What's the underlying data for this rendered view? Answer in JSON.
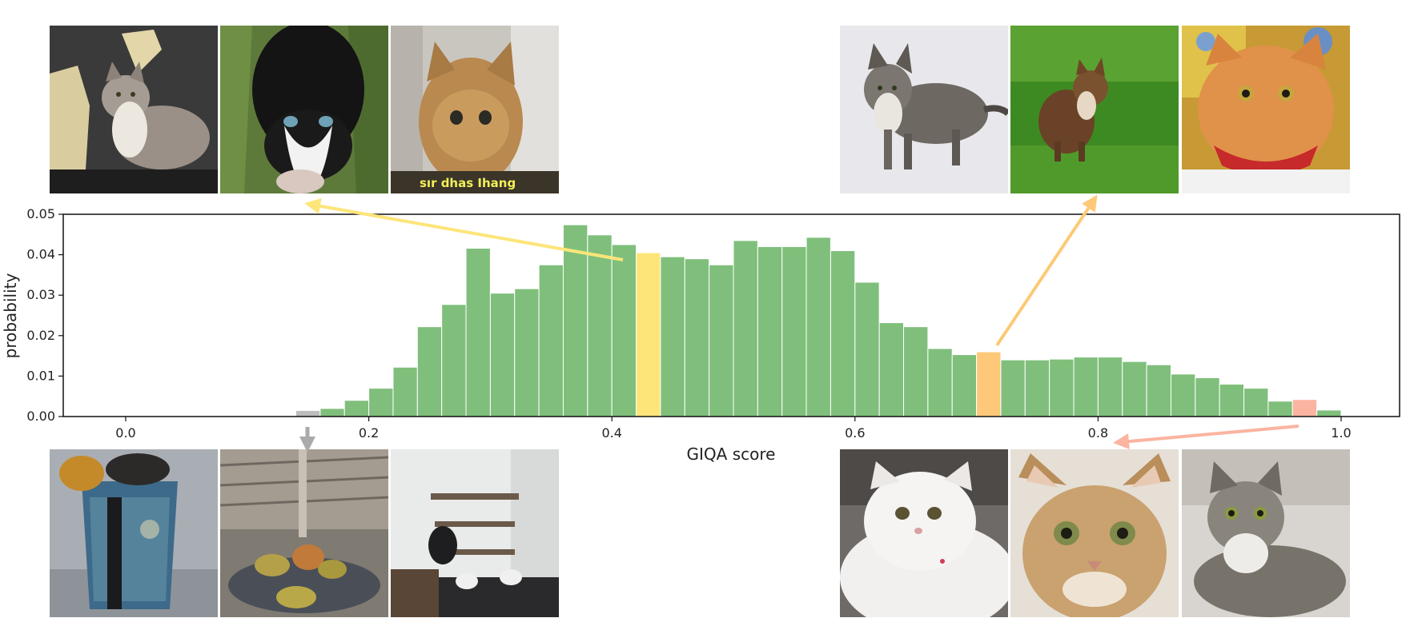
{
  "chart_data": {
    "type": "bar",
    "xlabel": "GIQA score",
    "ylabel": "probability",
    "xlim": [
      -0.1,
      1.05
    ],
    "ylim": [
      0,
      0.05
    ],
    "x_ticks": [
      "0.0",
      "0.2",
      "0.4",
      "0.6",
      "0.8",
      "1.0"
    ],
    "y_ticks": [
      "0.00",
      "0.01",
      "0.02",
      "0.03",
      "0.04",
      "0.05"
    ],
    "bin_width": 0.02,
    "bins": [
      {
        "x": 0.12,
        "value": 0.0002,
        "color": "#7fbf7b"
      },
      {
        "x": 0.14,
        "value": 0.0015,
        "color": "#bdbdbd"
      },
      {
        "x": 0.16,
        "value": 0.002,
        "color": "#7fbf7b"
      },
      {
        "x": 0.18,
        "value": 0.004,
        "color": "#7fbf7b"
      },
      {
        "x": 0.2,
        "value": 0.007,
        "color": "#7fbf7b"
      },
      {
        "x": 0.22,
        "value": 0.0122,
        "color": "#7fbf7b"
      },
      {
        "x": 0.24,
        "value": 0.0222,
        "color": "#7fbf7b"
      },
      {
        "x": 0.26,
        "value": 0.0277,
        "color": "#7fbf7b"
      },
      {
        "x": 0.28,
        "value": 0.0416,
        "color": "#7fbf7b"
      },
      {
        "x": 0.3,
        "value": 0.0305,
        "color": "#7fbf7b"
      },
      {
        "x": 0.32,
        "value": 0.0316,
        "color": "#7fbf7b"
      },
      {
        "x": 0.34,
        "value": 0.0375,
        "color": "#7fbf7b"
      },
      {
        "x": 0.36,
        "value": 0.0474,
        "color": "#7fbf7b"
      },
      {
        "x": 0.38,
        "value": 0.0449,
        "color": "#7fbf7b"
      },
      {
        "x": 0.4,
        "value": 0.0425,
        "color": "#7fbf7b"
      },
      {
        "x": 0.42,
        "value": 0.0405,
        "color": "#fde57a"
      },
      {
        "x": 0.44,
        "value": 0.0395,
        "color": "#7fbf7b"
      },
      {
        "x": 0.46,
        "value": 0.039,
        "color": "#7fbf7b"
      },
      {
        "x": 0.48,
        "value": 0.0375,
        "color": "#7fbf7b"
      },
      {
        "x": 0.5,
        "value": 0.0435,
        "color": "#7fbf7b"
      },
      {
        "x": 0.52,
        "value": 0.042,
        "color": "#7fbf7b"
      },
      {
        "x": 0.54,
        "value": 0.042,
        "color": "#7fbf7b"
      },
      {
        "x": 0.56,
        "value": 0.0443,
        "color": "#7fbf7b"
      },
      {
        "x": 0.58,
        "value": 0.041,
        "color": "#7fbf7b"
      },
      {
        "x": 0.6,
        "value": 0.0332,
        "color": "#7fbf7b"
      },
      {
        "x": 0.62,
        "value": 0.0232,
        "color": "#7fbf7b"
      },
      {
        "x": 0.64,
        "value": 0.0222,
        "color": "#7fbf7b"
      },
      {
        "x": 0.66,
        "value": 0.0168,
        "color": "#7fbf7b"
      },
      {
        "x": 0.68,
        "value": 0.0153,
        "color": "#7fbf7b"
      },
      {
        "x": 0.7,
        "value": 0.016,
        "color": "#fdc978"
      },
      {
        "x": 0.72,
        "value": 0.014,
        "color": "#7fbf7b"
      },
      {
        "x": 0.74,
        "value": 0.014,
        "color": "#7fbf7b"
      },
      {
        "x": 0.76,
        "value": 0.0142,
        "color": "#7fbf7b"
      },
      {
        "x": 0.78,
        "value": 0.0147,
        "color": "#7fbf7b"
      },
      {
        "x": 0.8,
        "value": 0.0147,
        "color": "#7fbf7b"
      },
      {
        "x": 0.82,
        "value": 0.0136,
        "color": "#7fbf7b"
      },
      {
        "x": 0.84,
        "value": 0.0128,
        "color": "#7fbf7b"
      },
      {
        "x": 0.86,
        "value": 0.0105,
        "color": "#7fbf7b"
      },
      {
        "x": 0.88,
        "value": 0.0096,
        "color": "#7fbf7b"
      },
      {
        "x": 0.9,
        "value": 0.008,
        "color": "#7fbf7b"
      },
      {
        "x": 0.92,
        "value": 0.007,
        "color": "#7fbf7b"
      },
      {
        "x": 0.94,
        "value": 0.0038,
        "color": "#7fbf7b"
      },
      {
        "x": 0.96,
        "value": 0.0042,
        "color": "#fbb4a0"
      },
      {
        "x": 0.98,
        "value": 0.0016,
        "color": "#7fbf7b"
      }
    ],
    "grid": false,
    "legend": "none"
  },
  "colors": {
    "green": "#7fbf7b",
    "yellow": "#fde57a",
    "orange": "#fdc978",
    "salmon": "#fbb4a0",
    "gray": "#bdbdbd"
  },
  "image_texts": {
    "cat_caption": "sır dhas Ihang"
  }
}
